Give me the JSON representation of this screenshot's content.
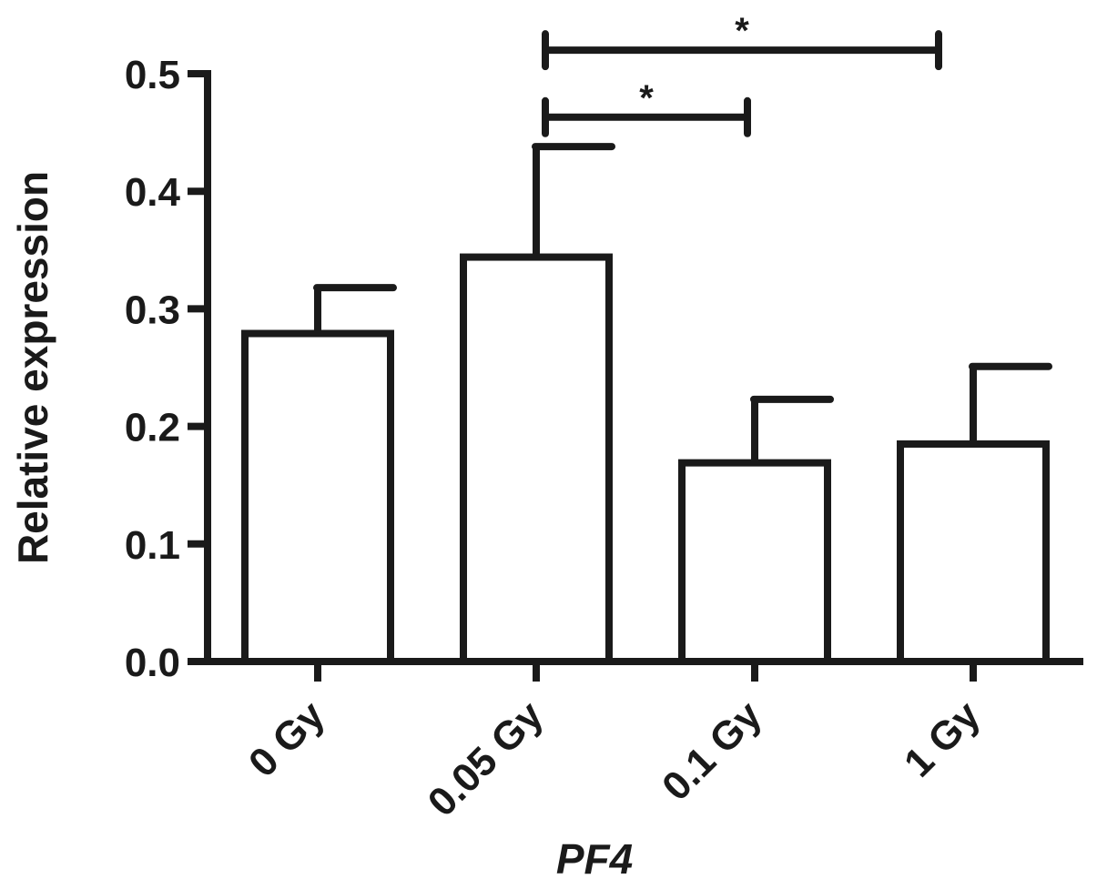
{
  "chart_data": {
    "type": "bar",
    "xlabel": "PF4",
    "ylabel": "Relative expression",
    "categories": [
      "0 Gy",
      "0.05 Gy",
      "0.1 Gy",
      "1 Gy"
    ],
    "values": [
      0.279,
      0.344,
      0.169,
      0.185
    ],
    "error_upper": [
      0.318,
      0.438,
      0.223,
      0.251
    ],
    "ylim": [
      0,
      0.5
    ],
    "yticks": [
      "0.0",
      "0.1",
      "0.2",
      "0.3",
      "0.4",
      "0.5"
    ],
    "grid": false,
    "bar_fill": "#ffffff",
    "bar_stroke": "#1a1a1a",
    "significance": [
      {
        "from": 1,
        "to": 2,
        "y": 0.463,
        "label": "*"
      },
      {
        "from": 1,
        "to": 3,
        "y": 0.52,
        "label": "*"
      }
    ]
  }
}
